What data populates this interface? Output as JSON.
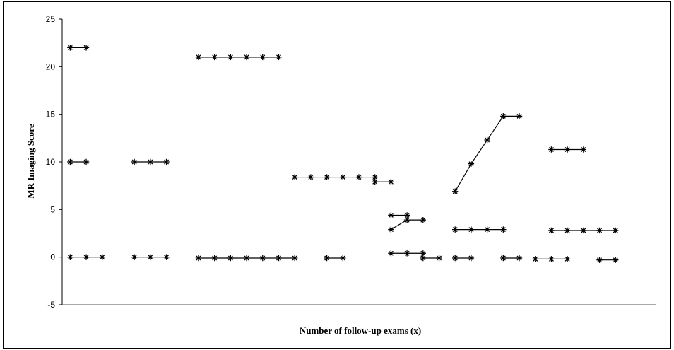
{
  "chart_data": {
    "type": "line",
    "xlabel": "Number of follow-up exams (x)",
    "ylabel": "MR Imaging Score",
    "ylim": [
      -5,
      25
    ],
    "yticks": [
      -5,
      0,
      5,
      10,
      15,
      20,
      25
    ],
    "grid": false,
    "legend": "none",
    "x_slots": 37,
    "series": [
      {
        "x": [
          1,
          2
        ],
        "y": [
          22,
          22
        ]
      },
      {
        "x": [
          1,
          2
        ],
        "y": [
          10,
          10
        ]
      },
      {
        "x": [
          1,
          2,
          3
        ],
        "y": [
          0,
          0,
          0
        ]
      },
      {
        "x": [
          5,
          6,
          7
        ],
        "y": [
          10,
          10,
          10
        ]
      },
      {
        "x": [
          5,
          6,
          7
        ],
        "y": [
          0,
          0,
          0
        ]
      },
      {
        "x": [
          9,
          10,
          11,
          12,
          13,
          14
        ],
        "y": [
          21,
          21,
          21,
          21,
          21,
          21
        ]
      },
      {
        "x": [
          9,
          10,
          11,
          12,
          13,
          14,
          15
        ],
        "y": [
          -0.1,
          -0.1,
          -0.1,
          -0.1,
          -0.1,
          -0.1,
          -0.1
        ]
      },
      {
        "x": [
          15,
          16,
          17,
          18,
          19,
          20
        ],
        "y": [
          8.4,
          8.4,
          8.4,
          8.4,
          8.4,
          8.4
        ]
      },
      {
        "x": [
          17,
          18
        ],
        "y": [
          -0.1,
          -0.1
        ]
      },
      {
        "x": [
          20,
          21
        ],
        "y": [
          7.9,
          7.9
        ]
      },
      {
        "x": [
          21,
          22
        ],
        "y": [
          4.4,
          4.4
        ]
      },
      {
        "x": [
          21,
          22,
          23
        ],
        "y": [
          2.9,
          3.9,
          3.9
        ]
      },
      {
        "x": [
          21,
          22,
          23
        ],
        "y": [
          0.4,
          0.4,
          0.4
        ]
      },
      {
        "x": [
          23,
          24
        ],
        "y": [
          -0.1,
          -0.1
        ]
      },
      {
        "x": [
          25,
          26,
          27,
          28,
          29
        ],
        "y": [
          6.9,
          9.8,
          12.3,
          14.8,
          14.8
        ]
      },
      {
        "x": [
          25,
          26,
          27,
          28
        ],
        "y": [
          2.9,
          2.9,
          2.9,
          2.9
        ]
      },
      {
        "x": [
          25,
          26
        ],
        "y": [
          -0.1,
          -0.1
        ]
      },
      {
        "x": [
          28,
          29
        ],
        "y": [
          -0.1,
          -0.1
        ]
      },
      {
        "x": [
          31,
          32,
          33
        ],
        "y": [
          11.3,
          11.3,
          11.3
        ]
      },
      {
        "x": [
          31,
          32,
          33,
          34,
          35
        ],
        "y": [
          2.8,
          2.8,
          2.8,
          2.8,
          2.8
        ]
      },
      {
        "x": [
          30,
          31,
          32
        ],
        "y": [
          -0.2,
          -0.2,
          -0.2
        ]
      },
      {
        "x": [
          34,
          35
        ],
        "y": [
          -0.3,
          -0.3
        ]
      }
    ]
  }
}
